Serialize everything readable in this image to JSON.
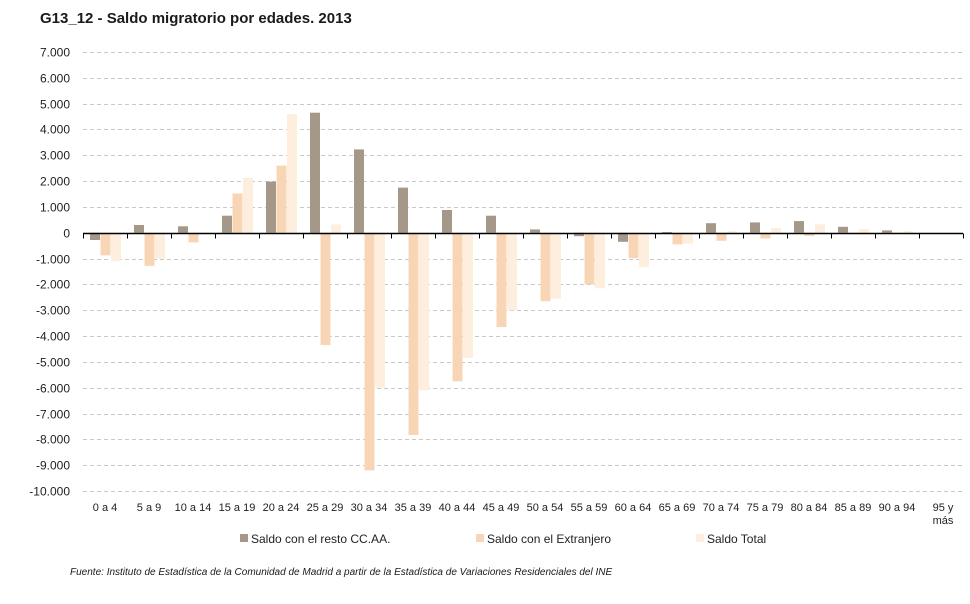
{
  "chart_data": {
    "type": "bar",
    "title": "G13_12 - Saldo migratorio por edades. 2013",
    "xlabel": "",
    "ylabel": "",
    "ylim": [
      -10000,
      7000
    ],
    "yticks": [
      7000,
      6000,
      5000,
      4000,
      3000,
      2000,
      1000,
      0,
      -1000,
      -2000,
      -3000,
      -4000,
      -5000,
      -6000,
      -7000,
      -8000,
      -9000,
      -10000
    ],
    "ytick_labels": [
      "7.000",
      "6.000",
      "5.000",
      "4.000",
      "3.000",
      "2.000",
      "1.000",
      "0",
      "-1.000",
      "-2.000",
      "-3.000",
      "-4.000",
      "-5.000",
      "-6.000",
      "-7.000",
      "-8.000",
      "-9.000",
      "-10.000"
    ],
    "grid": true,
    "legend_position": "bottom",
    "categories": [
      "0 a 4",
      "5 a 9",
      "10 a 14",
      "15 a 19",
      "20 a 24",
      "25 a 29",
      "30 a 34",
      "35 a 39",
      "40 a 44",
      "45 a 49",
      "50 a 54",
      "55 a 59",
      "60 a 64",
      "65 a 69",
      "70 a 74",
      "75 a 79",
      "80 a 84",
      "85 a 89",
      "90 a 94",
      "95 y más"
    ],
    "series": [
      {
        "name": "Saldo con el resto CC.AA.",
        "color": "#a69888",
        "values": [
          -280,
          300,
          250,
          660,
          1980,
          4650,
          3230,
          1750,
          880,
          660,
          130,
          -130,
          -350,
          30,
          370,
          400,
          450,
          230,
          90,
          0
        ]
      },
      {
        "name": "Saldo con el Extranjero",
        "color": "#f8d5b5",
        "values": [
          -870,
          -1280,
          -370,
          1520,
          2600,
          -4350,
          -9200,
          -7830,
          -5750,
          -3650,
          -2650,
          -2000,
          -980,
          -450,
          -310,
          -220,
          -120,
          -50,
          -20,
          0
        ]
      },
      {
        "name": "Saldo Total",
        "color": "#fdeedd",
        "values": [
          -1100,
          -1000,
          -60,
          2130,
          4600,
          320,
          -6000,
          -6100,
          -4850,
          -3000,
          -2550,
          -2150,
          -1330,
          -420,
          60,
          180,
          330,
          150,
          60,
          0
        ]
      }
    ]
  },
  "source_note": "Fuente: Instituto de Estadística de la Comunidad de Madrid a partir de la Estadística de Variaciones Residenciales del INE"
}
